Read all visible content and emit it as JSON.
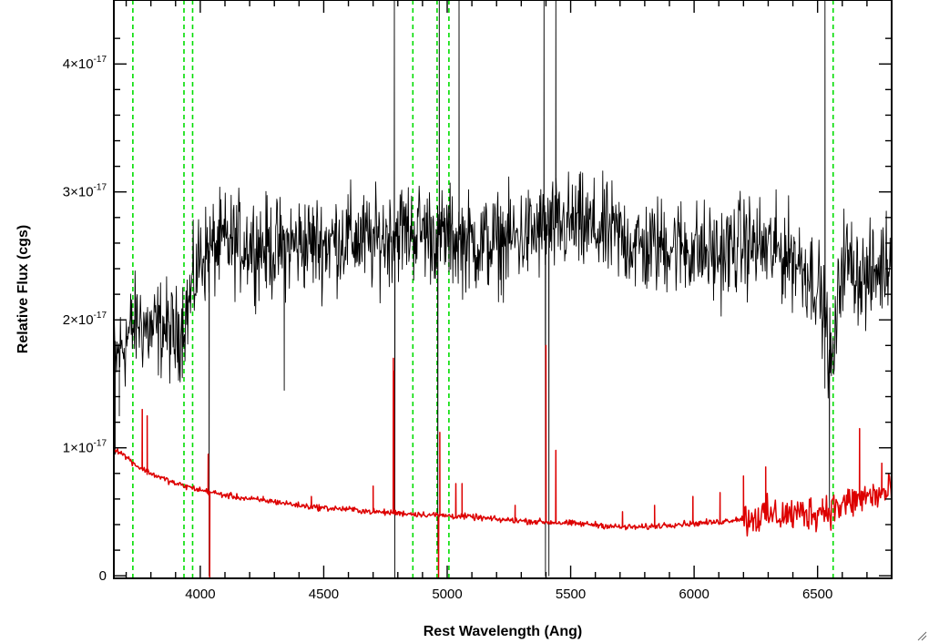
{
  "chart_data": {
    "type": "line",
    "title": "",
    "xlabel": "Rest Wavelength (Ang)",
    "ylabel": "Relative Flux (cgs)",
    "xlim": [
      3650,
      6800
    ],
    "ylim": [
      -2e-19,
      4.5e-17
    ],
    "grid": false,
    "x_ticks": [
      {
        "value": 4000,
        "label": "4000"
      },
      {
        "value": 4500,
        "label": "4500"
      },
      {
        "value": 5000,
        "label": "5000"
      },
      {
        "value": 5500,
        "label": "5500"
      },
      {
        "value": 6000,
        "label": "6000"
      },
      {
        "value": 6500,
        "label": "6500"
      }
    ],
    "y_ticks": [
      {
        "value": 0,
        "label": "0"
      },
      {
        "value": 1e-17,
        "label": "1×10",
        "exp": "-17"
      },
      {
        "value": 2e-17,
        "label": "2×10",
        "exp": "-17"
      },
      {
        "value": 3e-17,
        "label": "3×10",
        "exp": "-17"
      },
      {
        "value": 4e-17,
        "label": "4×10",
        "exp": "-17"
      }
    ],
    "vertical_lines": {
      "color": "#00dd00",
      "style": "dashed",
      "x": [
        3727,
        3934,
        3969,
        4861,
        4959,
        5007,
        6563
      ]
    },
    "series": [
      {
        "color": "#000000",
        "baseline": [
          [
            3650,
            1.65e-17
          ],
          [
            3700,
            1.85e-17
          ],
          [
            3750,
            2e-17
          ],
          [
            3800,
            1.9e-17
          ],
          [
            3850,
            1.95e-17
          ],
          [
            3900,
            1.85e-17
          ],
          [
            3950,
            2.1e-17
          ],
          [
            4000,
            2.5e-17
          ],
          [
            4100,
            2.6e-17
          ],
          [
            4200,
            2.6e-17
          ],
          [
            4300,
            2.55e-17
          ],
          [
            4400,
            2.6e-17
          ],
          [
            4500,
            2.6e-17
          ],
          [
            4600,
            2.65e-17
          ],
          [
            4700,
            2.6e-17
          ],
          [
            4800,
            2.7e-17
          ],
          [
            4900,
            2.7e-17
          ],
          [
            5000,
            2.65e-17
          ],
          [
            5100,
            2.6e-17
          ],
          [
            5200,
            2.6e-17
          ],
          [
            5300,
            2.65e-17
          ],
          [
            5400,
            2.7e-17
          ],
          [
            5500,
            2.75e-17
          ],
          [
            5600,
            2.7e-17
          ],
          [
            5700,
            2.65e-17
          ],
          [
            5800,
            2.55e-17
          ],
          [
            5900,
            2.6e-17
          ],
          [
            6000,
            2.55e-17
          ],
          [
            6100,
            2.5e-17
          ],
          [
            6200,
            2.6e-17
          ],
          [
            6300,
            2.55e-17
          ],
          [
            6400,
            2.5e-17
          ],
          [
            6500,
            2.3e-17
          ],
          [
            6560,
            1.6e-17
          ],
          [
            6600,
            2.5e-17
          ],
          [
            6700,
            2.3e-17
          ],
          [
            6800,
            2.5e-17
          ]
        ],
        "noise": 3.3e-18,
        "spikes": [
          [
            3655,
            9.5e-18
          ],
          [
            3672,
            1.25e-17
          ],
          [
            4036,
            0.0
          ],
          [
            4340,
            1.45e-17
          ],
          [
            4786,
            4.6e-17
          ],
          [
            4788,
            -2e-19
          ],
          [
            4962,
            2e-18
          ],
          [
            4968,
            4.6e-17
          ],
          [
            5048,
            4.6e-17
          ],
          [
            5392,
            4.6e-17
          ],
          [
            5398,
            0.0
          ],
          [
            5412,
            0.0
          ],
          [
            5440,
            4.6e-17
          ],
          [
            6530,
            4.6e-17
          ],
          [
            6548,
            5e-18
          ]
        ]
      },
      {
        "color": "#dd0000",
        "baseline": [
          [
            3650,
            1e-17
          ],
          [
            3700,
            9.3e-18
          ],
          [
            3750,
            8.5e-18
          ],
          [
            3800,
            8e-18
          ],
          [
            3900,
            7.2e-18
          ],
          [
            4000,
            6.7e-18
          ],
          [
            4100,
            6.3e-18
          ],
          [
            4200,
            6e-18
          ],
          [
            4300,
            5.8e-18
          ],
          [
            4400,
            5.5e-18
          ],
          [
            4500,
            5.3e-18
          ],
          [
            4600,
            5.2e-18
          ],
          [
            4700,
            5e-18
          ],
          [
            4800,
            4.9e-18
          ],
          [
            4900,
            4.8e-18
          ],
          [
            5000,
            4.7e-18
          ],
          [
            5100,
            4.6e-18
          ],
          [
            5200,
            4.4e-18
          ],
          [
            5300,
            4.3e-18
          ],
          [
            5400,
            4.2e-18
          ],
          [
            5500,
            4.1e-18
          ],
          [
            5600,
            4e-18
          ],
          [
            5700,
            3.8e-18
          ],
          [
            5800,
            3.8e-18
          ],
          [
            5900,
            4e-18
          ],
          [
            6000,
            4.1e-18
          ],
          [
            6100,
            4.2e-18
          ],
          [
            6200,
            4.5e-18
          ],
          [
            6300,
            4.7e-18
          ],
          [
            6400,
            4.8e-18
          ],
          [
            6500,
            5e-18
          ],
          [
            6600,
            5.5e-18
          ],
          [
            6700,
            6.2e-18
          ],
          [
            6800,
            6.5e-18
          ]
        ],
        "noise": 2e-19,
        "noisy_segments": [
          [
            6200,
            6800,
            1.2e-18
          ]
        ],
        "spikes": [
          [
            3765,
            1.3e-17
          ],
          [
            3785,
            1.25e-17
          ],
          [
            4032,
            9.5e-18
          ],
          [
            4038,
            -2e-19
          ],
          [
            4255,
            6.2e-18
          ],
          [
            4450,
            6.2e-18
          ],
          [
            4700,
            7e-18
          ],
          [
            4782,
            1.7e-17
          ],
          [
            4784,
            1.6e-17
          ],
          [
            4965,
            -2e-19
          ],
          [
            4970,
            1.12e-17
          ],
          [
            5035,
            7.2e-18
          ],
          [
            5060,
            7.2e-18
          ],
          [
            5275,
            5.5e-18
          ],
          [
            5400,
            1.8e-17
          ],
          [
            5440,
            9.8e-18
          ],
          [
            5710,
            5e-18
          ],
          [
            5840,
            5.5e-18
          ],
          [
            5995,
            6.2e-18
          ],
          [
            6105,
            6.5e-18
          ],
          [
            6200,
            7.8e-18
          ],
          [
            6290,
            8.5e-18
          ],
          [
            6520,
            6e-18
          ],
          [
            6670,
            1.15e-17
          ],
          [
            6760,
            8.8e-18
          ]
        ]
      }
    ]
  }
}
